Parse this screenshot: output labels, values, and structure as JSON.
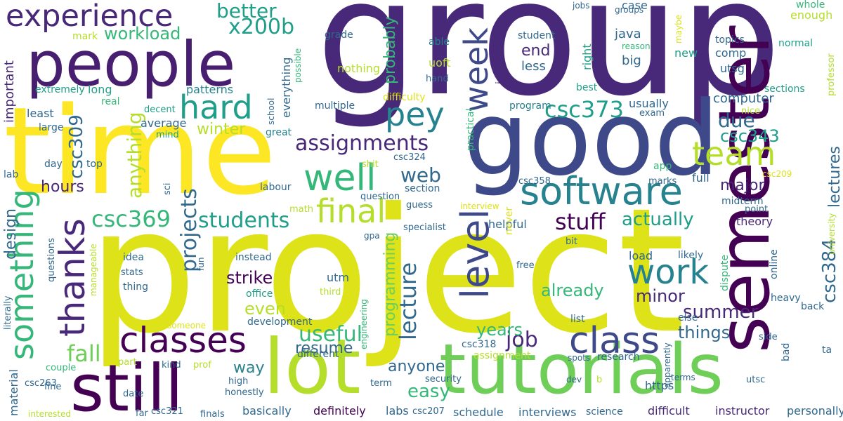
{
  "palette": {
    "purple": "#440154",
    "indigo": "#482878",
    "violet": "#3e4989",
    "slate": "#31688e",
    "teal": "#26828e",
    "green": "#1f9e89",
    "jade": "#35b779",
    "lime": "#6ece58",
    "chartreuse": "#b5de2b",
    "yellow": "#fde725"
  },
  "words": [
    {
      "text": "group"
    },
    {
      "text": "project"
    },
    {
      "text": "time"
    },
    {
      "text": "good"
    },
    {
      "text": "semester"
    },
    {
      "text": "people"
    },
    {
      "text": "lot"
    },
    {
      "text": "tutorials"
    },
    {
      "text": "still"
    },
    {
      "text": "experience"
    },
    {
      "text": "software"
    },
    {
      "text": "classes"
    },
    {
      "text": "class"
    },
    {
      "text": "final"
    },
    {
      "text": "well"
    },
    {
      "text": "hard"
    },
    {
      "text": "pey"
    },
    {
      "text": "work"
    },
    {
      "text": "team"
    },
    {
      "text": "level"
    },
    {
      "text": "week"
    },
    {
      "text": "something"
    },
    {
      "text": "thanks"
    },
    {
      "text": "x200b"
    },
    {
      "text": "better"
    },
    {
      "text": "workload"
    },
    {
      "text": "csc309"
    },
    {
      "text": "csc373"
    },
    {
      "text": "assignments"
    },
    {
      "text": "anything"
    },
    {
      "text": "csc369"
    },
    {
      "text": "students"
    },
    {
      "text": "projects"
    },
    {
      "text": "useful"
    },
    {
      "text": "fall"
    },
    {
      "text": "stuff"
    },
    {
      "text": "actually"
    },
    {
      "text": "lectures"
    },
    {
      "text": "lecture"
    },
    {
      "text": "due"
    },
    {
      "text": "csc343"
    },
    {
      "text": "csc384"
    },
    {
      "text": "summer"
    },
    {
      "text": "job"
    },
    {
      "text": "easy"
    },
    {
      "text": "programming"
    },
    {
      "text": "already"
    },
    {
      "text": "minor"
    },
    {
      "text": "strike"
    },
    {
      "text": "even"
    },
    {
      "text": "years"
    },
    {
      "text": "resume"
    },
    {
      "text": "anyone"
    },
    {
      "text": "things"
    },
    {
      "text": "web"
    },
    {
      "text": "winter"
    },
    {
      "text": "hours"
    },
    {
      "text": "design"
    },
    {
      "text": "important"
    },
    {
      "text": "probably"
    },
    {
      "text": "major"
    },
    {
      "text": "way"
    },
    {
      "text": "end"
    },
    {
      "text": "less"
    },
    {
      "text": "patterns"
    },
    {
      "text": "usually"
    },
    {
      "text": "computer"
    },
    {
      "text": "java"
    },
    {
      "text": "big"
    },
    {
      "text": "utsg"
    },
    {
      "text": "comp"
    },
    {
      "text": "topics"
    },
    {
      "text": "case"
    },
    {
      "text": "groups"
    },
    {
      "text": "jobs"
    },
    {
      "text": "whole"
    },
    {
      "text": "enough"
    },
    {
      "text": "interesting"
    },
    {
      "text": "student"
    },
    {
      "text": "reason"
    },
    {
      "text": "new"
    },
    {
      "text": "normal"
    },
    {
      "text": "professor"
    },
    {
      "text": "sections"
    },
    {
      "text": "best"
    },
    {
      "text": "right"
    },
    {
      "text": "maybe"
    },
    {
      "text": "mark"
    },
    {
      "text": "grade"
    },
    {
      "text": "able"
    },
    {
      "text": "possible"
    },
    {
      "text": "everything"
    },
    {
      "text": "nothing"
    },
    {
      "text": "uoft"
    },
    {
      "text": "hand"
    },
    {
      "text": "difficulty"
    },
    {
      "text": "multiple"
    },
    {
      "text": "school"
    },
    {
      "text": "extremely"
    },
    {
      "text": "long"
    },
    {
      "text": "real"
    },
    {
      "text": "decent"
    },
    {
      "text": "average"
    },
    {
      "text": "mind"
    },
    {
      "text": "least"
    },
    {
      "text": "large"
    },
    {
      "text": "great"
    },
    {
      "text": "practical"
    },
    {
      "text": "program"
    },
    {
      "text": "exam"
    },
    {
      "text": "nice"
    },
    {
      "text": "day"
    },
    {
      "text": "top"
    },
    {
      "text": "lab"
    },
    {
      "text": "sci"
    },
    {
      "text": "labour"
    },
    {
      "text": "section"
    },
    {
      "text": "csc324"
    },
    {
      "text": "shit"
    },
    {
      "text": "csc358"
    },
    {
      "text": "app"
    },
    {
      "text": "marks"
    },
    {
      "text": "full"
    },
    {
      "text": "csc209"
    },
    {
      "text": "math"
    },
    {
      "text": "question"
    },
    {
      "text": "guess"
    },
    {
      "text": "interview"
    },
    {
      "text": "midterm"
    },
    {
      "text": "point"
    },
    {
      "text": "theory"
    },
    {
      "text": "university"
    },
    {
      "text": "gpa"
    },
    {
      "text": "specialist"
    },
    {
      "text": "helpful"
    },
    {
      "text": "never"
    },
    {
      "text": "bit"
    },
    {
      "text": "load"
    },
    {
      "text": "likely"
    },
    {
      "text": "online"
    },
    {
      "text": "dispute"
    },
    {
      "text": "idea"
    },
    {
      "text": "stats"
    },
    {
      "text": "fun"
    },
    {
      "text": "instead"
    },
    {
      "text": "free"
    },
    {
      "text": "thing"
    },
    {
      "text": "utm"
    },
    {
      "text": "office"
    },
    {
      "text": "third"
    },
    {
      "text": "heavy"
    },
    {
      "text": "literally"
    },
    {
      "text": "manageable"
    },
    {
      "text": "questions"
    },
    {
      "text": "material"
    },
    {
      "text": "someone"
    },
    {
      "text": "development"
    },
    {
      "text": "list"
    },
    {
      "text": "else"
    },
    {
      "text": "back"
    },
    {
      "text": "side"
    },
    {
      "text": "ta"
    },
    {
      "text": "bad"
    },
    {
      "text": "engineering"
    },
    {
      "text": "csc318"
    },
    {
      "text": "research"
    },
    {
      "text": "apparently"
    },
    {
      "text": "couple"
    },
    {
      "text": "part"
    },
    {
      "text": "different"
    },
    {
      "text": "assignment"
    },
    {
      "text": "spots"
    },
    {
      "text": "terms"
    },
    {
      "text": "utsc"
    },
    {
      "text": "csc263"
    },
    {
      "text": "kind"
    },
    {
      "text": "prof"
    },
    {
      "text": "high"
    },
    {
      "text": "term"
    },
    {
      "text": "security"
    },
    {
      "text": "dev"
    },
    {
      "text": "b"
    },
    {
      "text": "https"
    },
    {
      "text": "fine"
    },
    {
      "text": "date"
    },
    {
      "text": "honestly"
    },
    {
      "text": "interested"
    },
    {
      "text": "far"
    },
    {
      "text": "csc321"
    },
    {
      "text": "finals"
    },
    {
      "text": "basically"
    },
    {
      "text": "definitely"
    },
    {
      "text": "labs"
    },
    {
      "text": "csc207"
    },
    {
      "text": "schedule"
    },
    {
      "text": "interviews"
    },
    {
      "text": "science"
    },
    {
      "text": "difficult"
    },
    {
      "text": "instructor"
    },
    {
      "text": "personally"
    }
  ]
}
